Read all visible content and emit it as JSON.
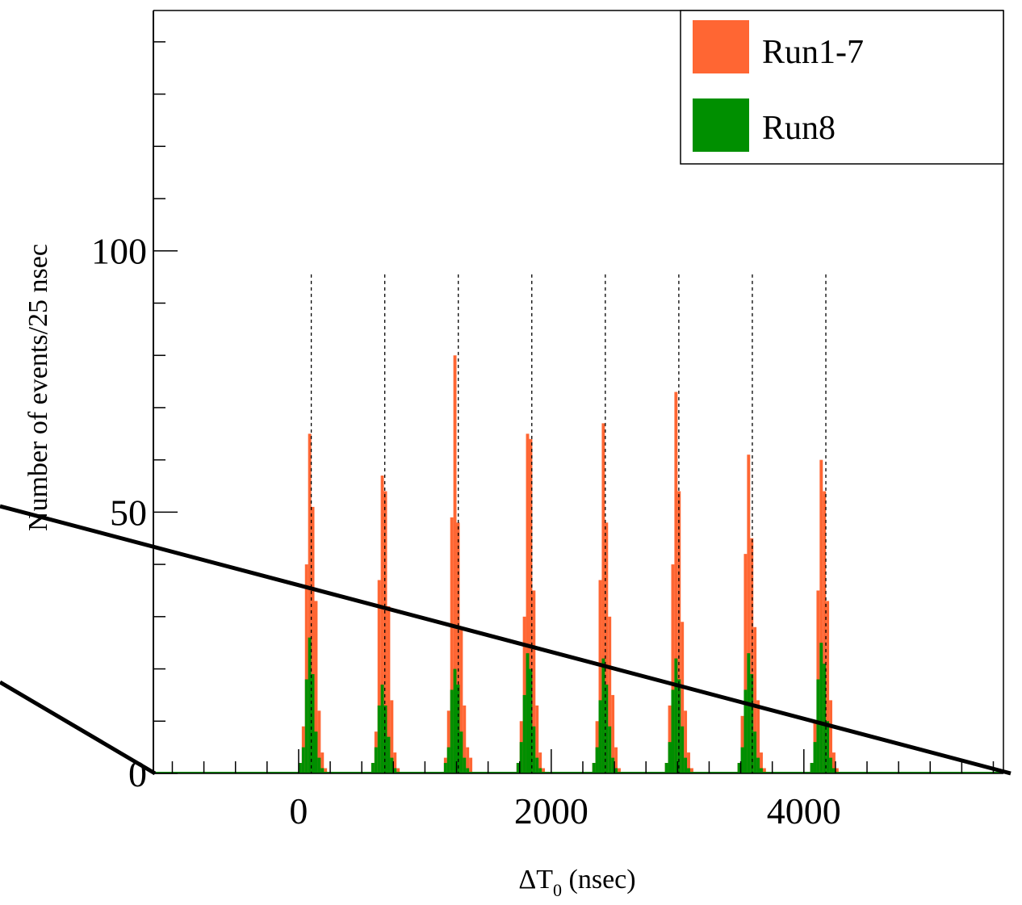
{
  "chart_data": {
    "type": "histogram",
    "xlabel_prefix": "ΔT",
    "xlabel_sub": "0",
    "xlabel_suffix": " (nsec)",
    "ylabel": "Number of events/25 nsec",
    "xlim": [
      -1150,
      5580
    ],
    "ylim": [
      0,
      146
    ],
    "bin_width": 25,
    "x_ticks": [
      0,
      2000,
      4000
    ],
    "y_ticks": [
      0,
      50,
      100
    ],
    "grid": false,
    "legend_position": "top-right",
    "bunch_markers_ns": [
      100,
      682,
      1264,
      1846,
      2428,
      3010,
      3592,
      4174
    ],
    "series": [
      {
        "name": "Run1-7",
        "color": "#ff6633",
        "peaks": [
          {
            "x": [
              0,
              25,
              50,
              75,
              100,
              125,
              150,
              175,
              200
            ],
            "values": [
              2,
              9,
              40,
              65,
              51,
              33,
              12,
              4,
              1
            ]
          },
          {
            "x": [
              575,
              600,
              625,
              650,
              675,
              700,
              725,
              750,
              775
            ],
            "values": [
              2,
              8,
              37,
              57,
              54,
              32,
              14,
              4,
              1
            ]
          },
          {
            "x": [
              1150,
              1175,
              1200,
              1225,
              1250,
              1275,
              1300,
              1325,
              1350
            ],
            "values": [
              3,
              12,
              49,
              80,
              48,
              28,
              13,
              5,
              3
            ]
          },
          {
            "x": [
              1725,
              1750,
              1775,
              1800,
              1825,
              1850,
              1875,
              1900,
              1925
            ],
            "values": [
              2,
              10,
              30,
              65,
              64,
              35,
              13,
              4,
              1
            ]
          },
          {
            "x": [
              2325,
              2350,
              2375,
              2400,
              2425,
              2450,
              2475,
              2500,
              2525
            ],
            "values": [
              2,
              10,
              37,
              67,
              48,
              30,
              15,
              5,
              1
            ]
          },
          {
            "x": [
              2900,
              2925,
              2950,
              2975,
              3000,
              3025,
              3050,
              3075,
              3100
            ],
            "values": [
              2,
              13,
              40,
              73,
              54,
              29,
              12,
              4,
              1
            ]
          },
          {
            "x": [
              3475,
              3500,
              3525,
              3550,
              3575,
              3600,
              3625,
              3650,
              3675
            ],
            "values": [
              2,
              11,
              42,
              61,
              45,
              28,
              14,
              4,
              1
            ]
          },
          {
            "x": [
              4050,
              4075,
              4100,
              4125,
              4150,
              4175,
              4200,
              4225,
              4250
            ],
            "values": [
              2,
              10,
              35,
              60,
              54,
              33,
              14,
              4,
              1
            ]
          }
        ]
      },
      {
        "name": "Run8",
        "color": "#008f00",
        "peaks": [
          {
            "x": [
              0,
              25,
              50,
              75,
              100,
              125,
              150,
              175
            ],
            "values": [
              2,
              5,
              18,
              26,
              19,
              8,
              3,
              1
            ]
          },
          {
            "x": [
              575,
              600,
              625,
              650,
              675,
              700,
              725,
              750
            ],
            "values": [
              2,
              5,
              13,
              17,
              13,
              7,
              3,
              1
            ]
          },
          {
            "x": [
              1150,
              1175,
              1200,
              1225,
              1250,
              1275,
              1300,
              1325
            ],
            "values": [
              2,
              5,
              16,
              20,
              17,
              8,
              3,
              1
            ]
          },
          {
            "x": [
              1725,
              1750,
              1775,
              1800,
              1825,
              1850,
              1875,
              1900
            ],
            "values": [
              2,
              6,
              15,
              23,
              20,
              9,
              3,
              1
            ]
          },
          {
            "x": [
              2325,
              2350,
              2375,
              2400,
              2425,
              2450,
              2475,
              2500
            ],
            "values": [
              2,
              5,
              14,
              22,
              17,
              9,
              3,
              1
            ]
          },
          {
            "x": [
              2900,
              2925,
              2950,
              2975,
              3000,
              3025,
              3050,
              3075
            ],
            "values": [
              2,
              6,
              16,
              22,
              18,
              9,
              3,
              1
            ]
          },
          {
            "x": [
              3475,
              3500,
              3525,
              3550,
              3575,
              3600,
              3625,
              3650
            ],
            "values": [
              2,
              5,
              16,
              23,
              19,
              8,
              3,
              1
            ]
          },
          {
            "x": [
              4050,
              4075,
              4100,
              4125,
              4150,
              4175,
              4200,
              4225
            ],
            "values": [
              2,
              6,
              18,
              25,
              21,
              10,
              3,
              1
            ]
          }
        ]
      }
    ]
  }
}
